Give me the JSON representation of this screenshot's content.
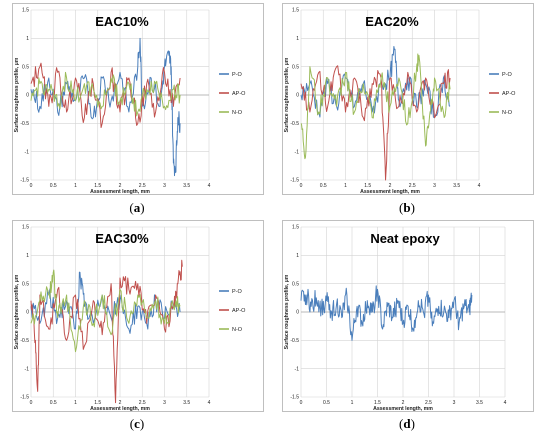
{
  "chart_data": [
    {
      "type": "line",
      "panel_label": "a",
      "title": "EAC10%",
      "xlabel": "Assessment length, mm",
      "ylabel": "Surface roughness profile, µm",
      "xlim": [
        0,
        4
      ],
      "ylim": [
        -1.5,
        1.5
      ],
      "x_ticks": [
        "0",
        "0.5",
        "1",
        "1.5",
        "2",
        "2.5",
        "3",
        "3.5",
        "4"
      ],
      "y_ticks": [
        "1.5",
        "1",
        "0.5",
        "0",
        "-0.5",
        "-1",
        "-1.5"
      ],
      "series": [
        {
          "name": "P-O",
          "color": "#4a7ebb",
          "x": [
            0,
            0.2,
            0.4,
            0.6,
            0.8,
            1.0,
            1.2,
            1.4,
            1.6,
            1.8,
            2.0,
            2.2,
            2.4,
            2.45,
            2.5,
            2.7,
            2.9,
            3.0,
            3.1,
            3.15,
            3.2,
            3.25,
            3.3,
            3.35
          ],
          "y": [
            0.1,
            -0.2,
            0.3,
            -0.3,
            0.2,
            -0.1,
            0.3,
            -0.4,
            0.3,
            -0.1,
            0.4,
            -0.3,
            0.5,
            1.0,
            -0.2,
            0.3,
            -0.2,
            0.5,
            0.7,
            0.5,
            -1.2,
            -1.3,
            -0.4,
            -0.5
          ]
        },
        {
          "name": "AP-O",
          "color": "#c0504d",
          "x": [
            0,
            0.2,
            0.4,
            0.6,
            0.8,
            1.0,
            1.2,
            1.4,
            1.6,
            1.8,
            2.0,
            2.2,
            2.4,
            2.6,
            2.8,
            3.0,
            3.2,
            3.35
          ],
          "y": [
            0.2,
            0.5,
            -0.2,
            0.4,
            -0.3,
            0.3,
            -0.4,
            0.2,
            -0.5,
            0.4,
            -0.3,
            0.3,
            -0.5,
            0.2,
            -0.3,
            0.4,
            -0.2,
            0.3
          ]
        },
        {
          "name": "N-O",
          "color": "#9bbb59",
          "x": [
            0,
            0.2,
            0.4,
            0.6,
            0.8,
            1.0,
            1.2,
            1.4,
            1.6,
            1.8,
            2.0,
            2.2,
            2.4,
            2.6,
            2.8,
            3.0,
            3.2,
            3.35
          ],
          "y": [
            -0.1,
            0.2,
            0.1,
            -0.2,
            0.3,
            -0.1,
            0.2,
            0.1,
            -0.2,
            0.3,
            -0.1,
            0.2,
            -0.3,
            0.1,
            0.2,
            -0.2,
            0.1,
            0.0
          ]
        }
      ]
    },
    {
      "type": "line",
      "panel_label": "b",
      "title": "EAC20%",
      "xlabel": "Assessment length, mm",
      "ylabel": "Surface roughness profile, µm",
      "xlim": [
        0,
        4
      ],
      "ylim": [
        -1.5,
        1.5
      ],
      "x_ticks": [
        "0",
        "0.5",
        "1",
        "1.5",
        "2",
        "2.5",
        "3",
        "3.5",
        "4"
      ],
      "y_ticks": [
        "1.5",
        "1",
        "0.5",
        "0",
        "-0.5",
        "-1",
        "-1.5"
      ],
      "series": [
        {
          "name": "P-O",
          "color": "#4a7ebb",
          "x": [
            0,
            0.2,
            0.4,
            0.6,
            0.8,
            1.0,
            1.2,
            1.4,
            1.6,
            1.8,
            2.0,
            2.1,
            2.2,
            2.4,
            2.6,
            2.8,
            3.0,
            3.2,
            3.35
          ],
          "y": [
            0.0,
            0.2,
            -0.3,
            0.2,
            -0.2,
            0.3,
            -0.2,
            0.2,
            -0.3,
            0.2,
            0.3,
            0.8,
            -0.1,
            0.3,
            -0.2,
            0.2,
            -0.4,
            0.3,
            -0.2
          ]
        },
        {
          "name": "AP-O",
          "color": "#c0504d",
          "x": [
            0,
            0.2,
            0.4,
            0.6,
            0.8,
            1.0,
            1.2,
            1.4,
            1.6,
            1.8,
            1.9,
            2.0,
            2.2,
            2.4,
            2.6,
            2.8,
            3.0,
            3.2,
            3.35
          ],
          "y": [
            0.2,
            -0.3,
            0.4,
            -0.2,
            0.5,
            -0.3,
            0.3,
            -0.4,
            0.2,
            0.3,
            -1.5,
            0.3,
            -0.2,
            0.4,
            -0.3,
            0.3,
            -0.4,
            0.2,
            0.3
          ]
        },
        {
          "name": "N-O",
          "color": "#9bbb59",
          "x": [
            0,
            0.1,
            0.2,
            0.4,
            0.6,
            0.8,
            1.0,
            1.2,
            1.4,
            1.6,
            1.8,
            2.0,
            2.2,
            2.4,
            2.6,
            2.65,
            2.8,
            2.9,
            3.0,
            3.2,
            3.35
          ],
          "y": [
            -0.5,
            -1.1,
            0.5,
            -0.3,
            0.3,
            -0.2,
            0.4,
            -0.3,
            0.2,
            -0.4,
            0.3,
            -0.2,
            0.3,
            -0.5,
            0.5,
            0.7,
            -0.9,
            -0.3,
            0.3,
            -0.3,
            0.1
          ]
        }
      ]
    },
    {
      "type": "line",
      "panel_label": "c",
      "title": "EAC30%",
      "xlabel": "Assessment length, mm",
      "ylabel": "Surface roughness profile, µm",
      "xlim": [
        0,
        4
      ],
      "ylim": [
        -1.5,
        1.5
      ],
      "x_ticks": [
        "0",
        "0.5",
        "1",
        "1.5",
        "2",
        "2.5",
        "3",
        "3.5",
        "4"
      ],
      "y_ticks": [
        "1.5",
        "1",
        "0.5",
        "0",
        "-0.5",
        "-1",
        "-1.5"
      ],
      "series": [
        {
          "name": "P-O",
          "color": "#4a7ebb",
          "x": [
            0,
            0.2,
            0.4,
            0.6,
            0.8,
            1.0,
            1.1,
            1.2,
            1.4,
            1.6,
            1.8,
            2.0,
            2.2,
            2.4,
            2.6,
            2.8,
            3.0,
            3.2,
            3.35
          ],
          "y": [
            0.1,
            -0.2,
            0.3,
            -0.1,
            0.2,
            -0.3,
            0.7,
            0.1,
            -0.2,
            0.3,
            -0.1,
            0.2,
            -0.3,
            0.1,
            -0.2,
            0.2,
            -0.1,
            0.1,
            0.0
          ]
        },
        {
          "name": "AP-O",
          "color": "#c0504d",
          "x": [
            0,
            0.1,
            0.15,
            0.2,
            0.4,
            0.6,
            0.8,
            1.0,
            1.2,
            1.4,
            1.6,
            1.8,
            1.9,
            2.0,
            2.2,
            2.4,
            2.6,
            2.8,
            3.0,
            3.2,
            3.3,
            3.4
          ],
          "y": [
            0.2,
            -0.5,
            -1.4,
            0.3,
            -0.3,
            0.4,
            -0.5,
            0.3,
            -0.6,
            0.2,
            -0.4,
            0.5,
            -1.6,
            0.6,
            0.4,
            0.5,
            -0.2,
            0.3,
            -0.3,
            0.1,
            0.5,
            0.8
          ]
        },
        {
          "name": "N-O",
          "color": "#9bbb59",
          "x": [
            0,
            0.2,
            0.4,
            0.5,
            0.6,
            0.8,
            1.0,
            1.2,
            1.4,
            1.6,
            1.8,
            2.0,
            2.2,
            2.4,
            2.6,
            2.8,
            3.0,
            3.2,
            3.35
          ],
          "y": [
            -0.2,
            0.2,
            0.3,
            0.7,
            -0.1,
            0.3,
            -0.7,
            0.2,
            -0.2,
            0.3,
            -0.4,
            0.4,
            -0.2,
            0.3,
            -0.1,
            0.2,
            -0.2,
            0.1,
            0.1
          ]
        }
      ]
    },
    {
      "type": "line",
      "panel_label": "d",
      "title": "Neat epoxy",
      "xlabel": "Assessment length, mm",
      "ylabel": "Surface roughness profile, µm",
      "xlim": [
        0,
        4
      ],
      "ylim": [
        -1.5,
        1.5
      ],
      "x_ticks": [
        "0",
        "0.5",
        "1",
        "1.5",
        "2",
        "2.5",
        "3",
        "3.5",
        "4"
      ],
      "y_ticks": [
        "1.5",
        "1",
        "0.5",
        "0",
        "-0.5",
        "-1",
        "-1.5"
      ],
      "series": [
        {
          "name": "",
          "color": "#4a7ebb",
          "x": [
            0,
            0.1,
            0.2,
            0.3,
            0.4,
            0.5,
            0.6,
            0.7,
            0.8,
            0.9,
            1.0,
            1.1,
            1.2,
            1.3,
            1.4,
            1.5,
            1.6,
            1.7,
            1.8,
            1.9,
            2.0,
            2.1,
            2.2,
            2.3,
            2.4,
            2.5,
            2.6,
            2.7,
            2.8,
            2.9,
            3.0,
            3.1,
            3.2,
            3.3,
            3.35
          ],
          "y": [
            0.2,
            0.3,
            0.1,
            0.25,
            0.05,
            0.2,
            0.0,
            0.15,
            -0.1,
            0.3,
            -0.5,
            0.1,
            -0.2,
            0.2,
            0.0,
            0.4,
            -0.3,
            0.1,
            -0.1,
            0.2,
            -0.2,
            0.1,
            -0.3,
            0.2,
            0.0,
            0.3,
            -0.2,
            0.1,
            0.0,
            -0.1,
            0.2,
            -0.2,
            0.1,
            0.0,
            0.3
          ]
        }
      ]
    }
  ]
}
